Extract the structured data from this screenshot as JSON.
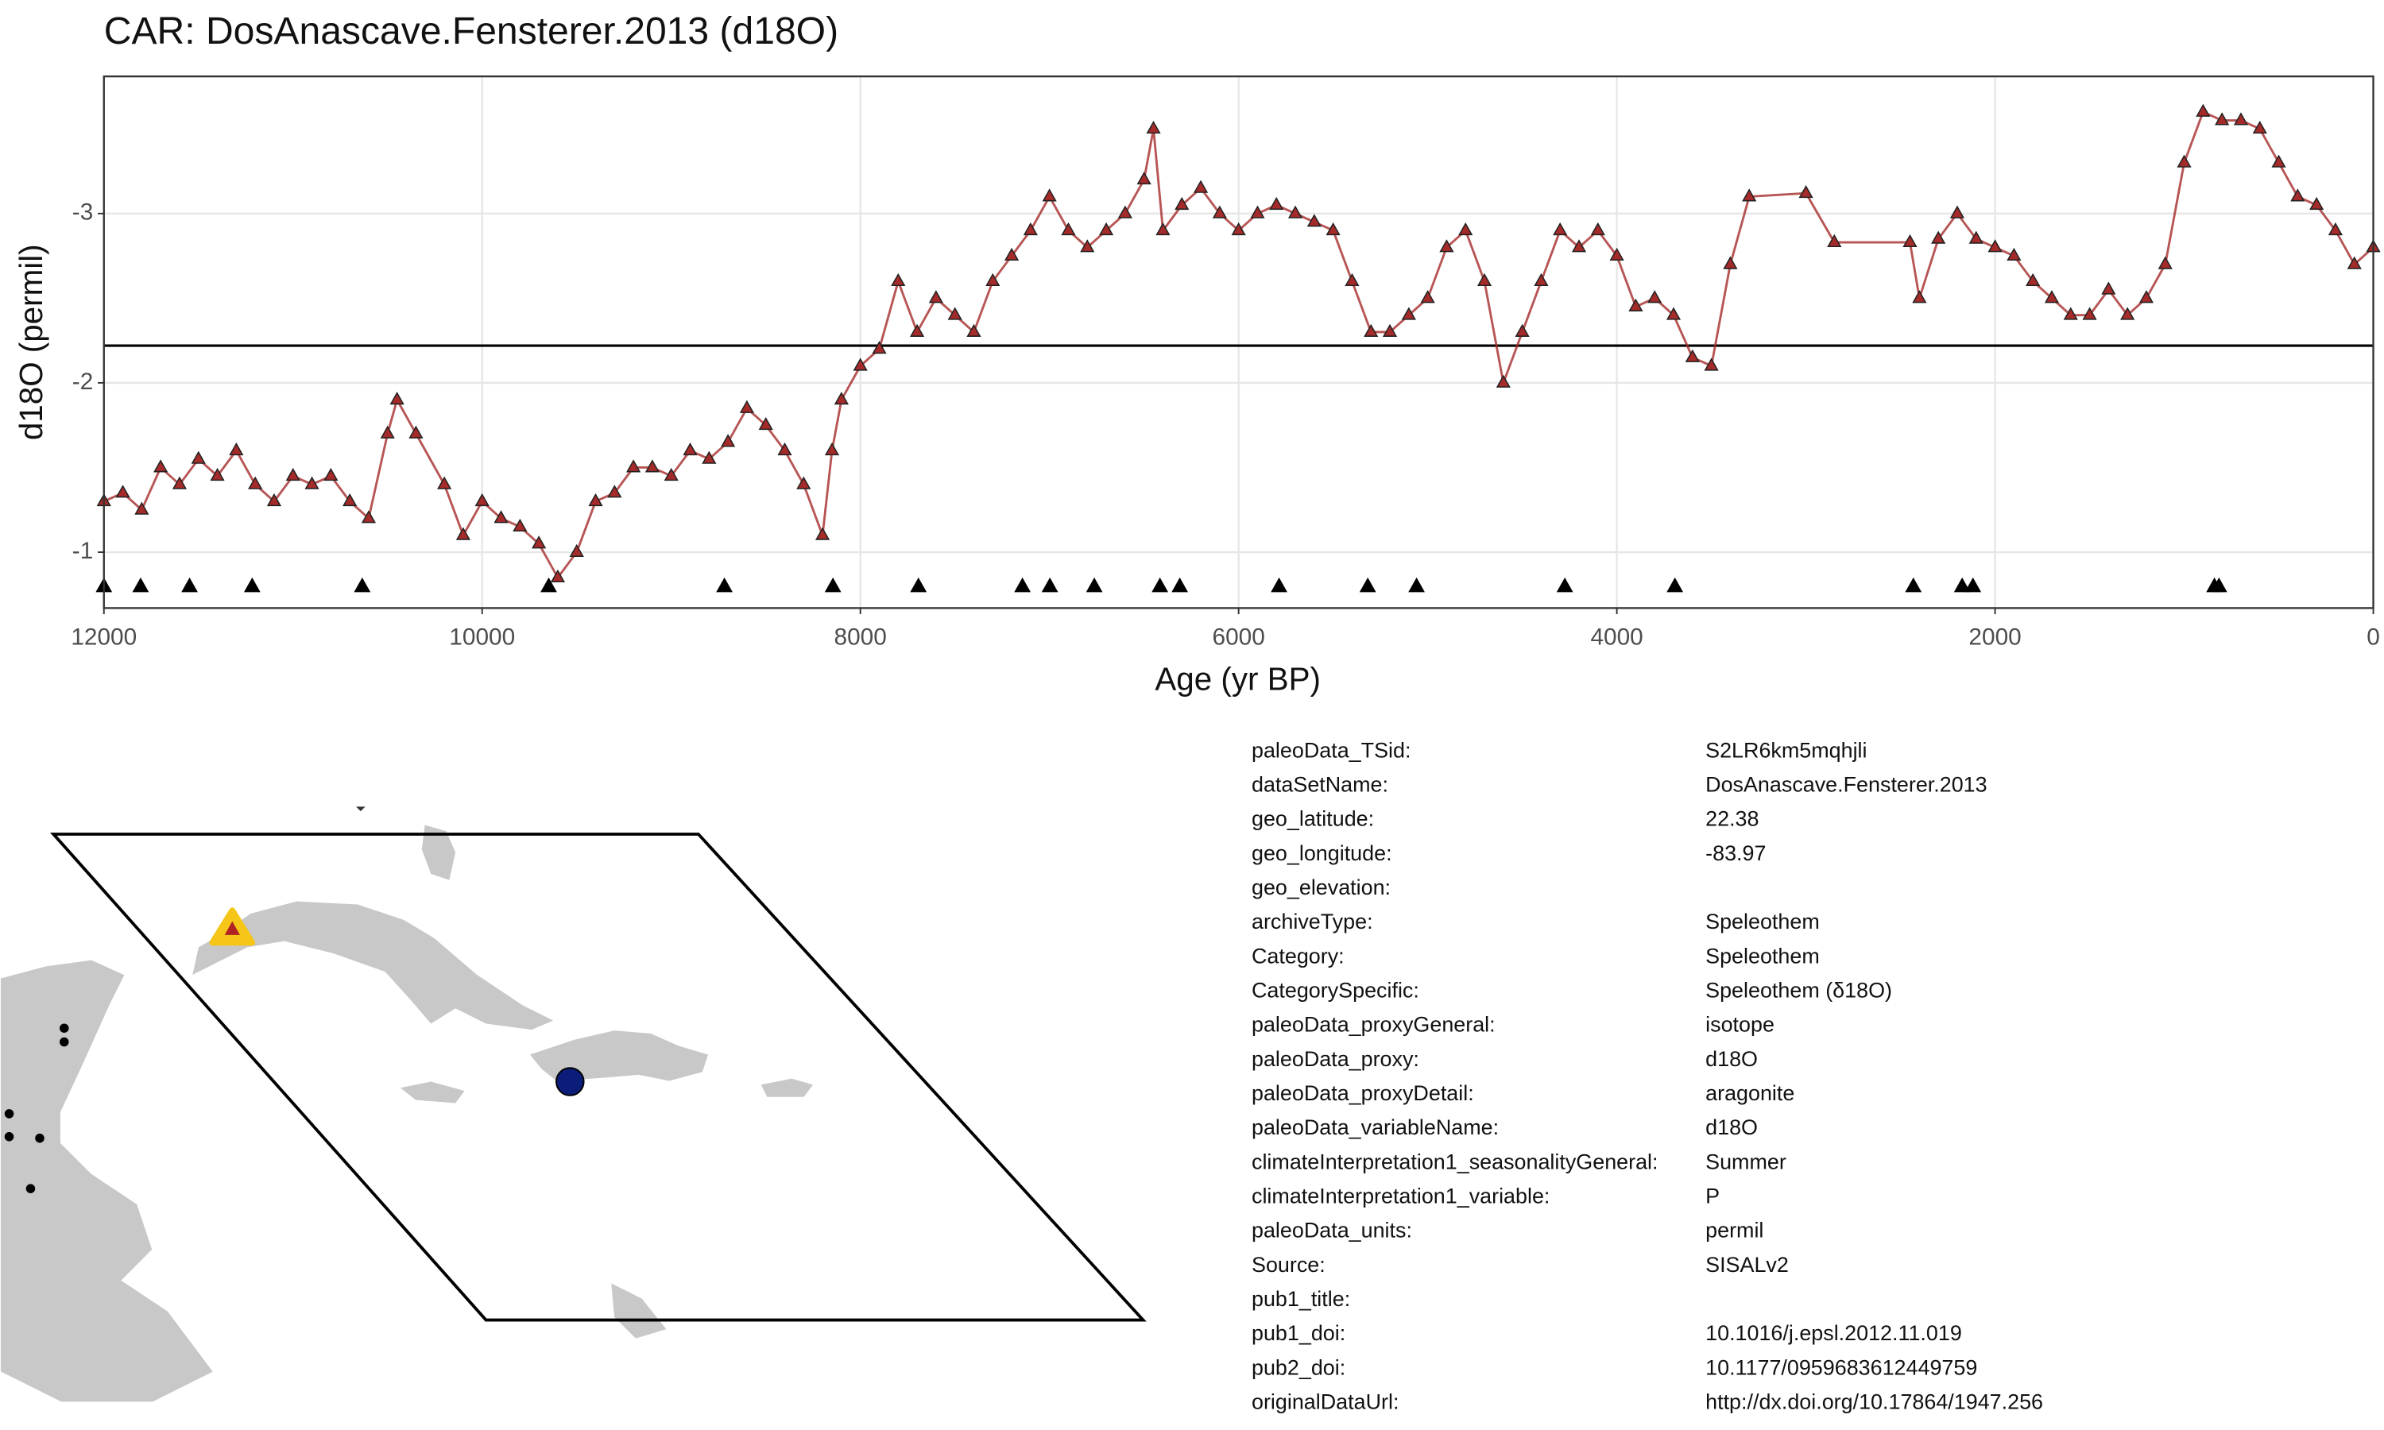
{
  "chart_data": {
    "type": "line",
    "title": "CAR: DosAnascave.Fensterer.2013 (d18O)",
    "xlabel": "Age (yr BP)",
    "ylabel": "d18O (permil)",
    "xlim": [
      12000,
      0
    ],
    "ylim": [
      -0.67,
      -3.81
    ],
    "xticks": [
      12000,
      10000,
      8000,
      6000,
      4000,
      2000,
      0
    ],
    "yticks": [
      -3,
      -2,
      -1
    ],
    "grid": true,
    "hline": -2.22,
    "x": [
      12000,
      11900,
      11800,
      11700,
      11600,
      11500,
      11400,
      11300,
      11200,
      11100,
      11000,
      10900,
      10800,
      10700,
      10600,
      10500,
      10450,
      10350,
      10200,
      10100,
      10000,
      9900,
      9800,
      9700,
      9600,
      9500,
      9400,
      9300,
      9200,
      9100,
      9000,
      8900,
      8800,
      8700,
      8600,
      8500,
      8400,
      8300,
      8200,
      8150,
      8100,
      8000,
      7900,
      7800,
      7700,
      7600,
      7500,
      7400,
      7300,
      7200,
      7100,
      7000,
      6900,
      6800,
      6700,
      6600,
      6500,
      6450,
      6400,
      6300,
      6200,
      6100,
      6000,
      5900,
      5800,
      5700,
      5600,
      5500,
      5400,
      5300,
      5200,
      5100,
      5000,
      4900,
      4800,
      4700,
      4600,
      4500,
      4400,
      4300,
      4200,
      4100,
      4000,
      3900,
      3800,
      3700,
      3600,
      3500,
      3400,
      3300,
      3000,
      2850,
      2450,
      2400,
      2300,
      2200,
      2100,
      2000,
      1900,
      1800,
      1700,
      1600,
      1500,
      1400,
      1300,
      1200,
      1100,
      1000,
      900,
      800,
      700,
      600,
      500,
      400,
      300,
      200,
      100,
      0
    ],
    "series": [
      {
        "color": "#a52a2a",
        "values": [
          -1.3,
          -1.35,
          -1.25,
          -1.5,
          -1.4,
          -1.55,
          -1.45,
          -1.6,
          -1.4,
          -1.3,
          -1.45,
          -1.4,
          -1.45,
          -1.3,
          -1.2,
          -1.7,
          -1.9,
          -1.7,
          -1.4,
          -1.1,
          -1.3,
          -1.2,
          -1.15,
          -1.05,
          -0.85,
          -1.0,
          -1.3,
          -1.35,
          -1.5,
          -1.5,
          -1.45,
          -1.6,
          -1.55,
          -1.65,
          -1.85,
          -1.75,
          -1.6,
          -1.4,
          -1.1,
          -1.6,
          -1.9,
          -2.1,
          -2.2,
          -2.6,
          -2.3,
          -2.5,
          -2.4,
          -2.3,
          -2.6,
          -2.75,
          -2.9,
          -3.1,
          -2.9,
          -2.8,
          -2.9,
          -3.0,
          -3.2,
          -3.5,
          -2.9,
          -3.05,
          -3.15,
          -3.0,
          -2.9,
          -3.0,
          -3.05,
          -3.0,
          -2.95,
          -2.9,
          -2.6,
          -2.3,
          -2.3,
          -2.4,
          -2.5,
          -2.8,
          -2.9,
          -2.6,
          -2.0,
          -2.3,
          -2.6,
          -2.9,
          -2.8,
          -2.9,
          -2.75,
          -2.45,
          -2.5,
          -2.4,
          -2.15,
          -2.1,
          -2.7,
          -3.1,
          -3.12,
          -2.83,
          -2.83,
          -2.5,
          -2.85,
          -3.0,
          -2.85,
          -2.8,
          -2.75,
          -2.6,
          -2.5,
          -2.4,
          -2.4,
          -2.55,
          -2.4,
          -2.5,
          -2.7,
          -3.3,
          -3.6,
          -3.55,
          -3.55,
          -3.5,
          -3.3,
          -3.1,
          -3.05,
          -2.9,
          -2.7,
          -2.8
        ]
      }
    ],
    "chron_ages": [
      12000,
      11806,
      11547,
      11216,
      10634,
      9648,
      8719,
      8145,
      7693,
      7143,
      6998,
      6763,
      6416,
      6311,
      5786,
      5317,
      5059,
      4275,
      3693,
      2432,
      2174,
      2117,
      840,
      816
    ]
  },
  "metadata": {
    "rows": [
      [
        "paleoData_TSid:",
        "S2LR6km5mqhjli"
      ],
      [
        "dataSetName:",
        "DosAnascave.Fensterer.2013"
      ],
      [
        "geo_latitude:",
        "22.38"
      ],
      [
        "geo_longitude:",
        "-83.97"
      ],
      [
        "geo_elevation:"
      ],
      [
        "archiveType:",
        "Speleothem"
      ],
      [
        "Category:",
        "Speleothem"
      ],
      [
        "CategorySpecific:",
        "Speleothem (δ18O)"
      ],
      [
        "paleoData_proxyGeneral:",
        "isotope"
      ],
      [
        "paleoData_proxy:",
        "d18O"
      ],
      [
        "paleoData_proxyDetail:",
        "aragonite"
      ],
      [
        "paleoData_variableName:",
        "d18O"
      ],
      [
        "climateInterpretation1_seasonalityGeneral:",
        "Summer"
      ],
      [
        "climateInterpretation1_variable:",
        "P"
      ],
      [
        "paleoData_units:",
        "permil"
      ],
      [
        "Source:",
        "SISALv2"
      ],
      [
        "pub1_title:"
      ],
      [
        "pub1_doi:",
        "10.1016/j.epsl.2012.11.019"
      ],
      [
        "pub2_doi:",
        "10.1177/0959683612449759"
      ],
      [
        "originalDataUrl:",
        "http://dx.doi.org/10.17864/1947.256"
      ]
    ]
  }
}
